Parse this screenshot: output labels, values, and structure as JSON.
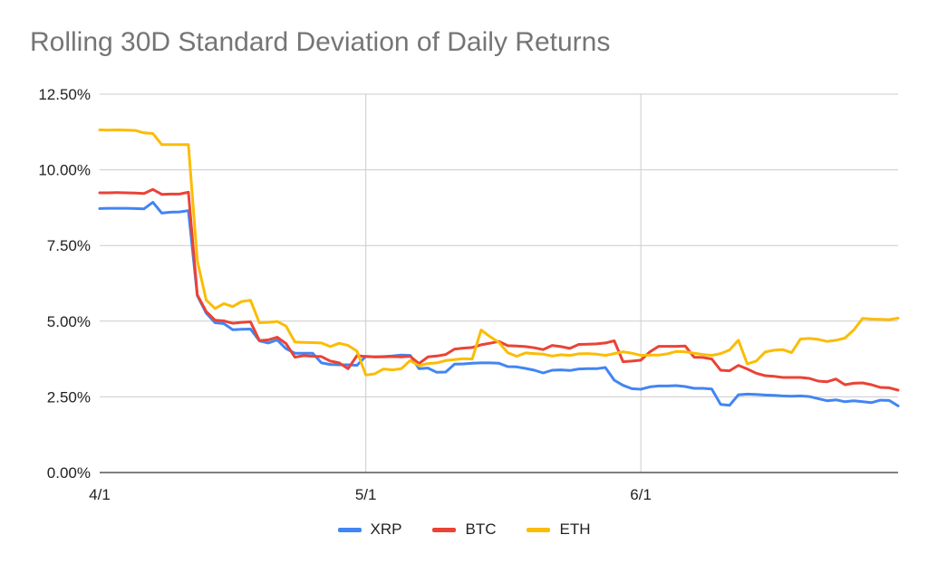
{
  "chart_data": {
    "type": "line",
    "title": "Rolling 30D Standard Deviation of Daily Returns",
    "xlabel": "",
    "ylabel": "",
    "x_ticks": [
      "4/1",
      "5/1",
      "6/1"
    ],
    "y_ticks": [
      "0.00%",
      "2.50%",
      "5.00%",
      "7.50%",
      "10.00%",
      "12.50%"
    ],
    "ylim": [
      0,
      12.5
    ],
    "grid": true,
    "legend_position": "bottom",
    "x": [
      "4/1",
      "4/2",
      "4/3",
      "4/4",
      "4/5",
      "4/6",
      "4/7",
      "4/8",
      "4/9",
      "4/10",
      "4/11",
      "4/12",
      "4/13",
      "4/14",
      "4/15",
      "4/16",
      "4/17",
      "4/18",
      "4/19",
      "4/20",
      "4/21",
      "4/22",
      "4/23",
      "4/24",
      "4/25",
      "4/26",
      "4/27",
      "4/28",
      "4/29",
      "4/30",
      "5/1",
      "5/2",
      "5/3",
      "5/4",
      "5/5",
      "5/6",
      "5/7",
      "5/8",
      "5/9",
      "5/10",
      "5/11",
      "5/12",
      "5/13",
      "5/14",
      "5/15",
      "5/16",
      "5/17",
      "5/18",
      "5/19",
      "5/20",
      "5/21",
      "5/22",
      "5/23",
      "5/24",
      "5/25",
      "5/26",
      "5/27",
      "5/28",
      "5/29",
      "5/30",
      "5/31",
      "6/1",
      "6/2",
      "6/3",
      "6/4",
      "6/5",
      "6/6",
      "6/7",
      "6/8",
      "6/9",
      "6/10",
      "6/11",
      "6/12",
      "6/13",
      "6/14",
      "6/15",
      "6/16",
      "6/17",
      "6/18",
      "6/19",
      "6/20",
      "6/21",
      "6/22",
      "6/23",
      "6/24",
      "6/25",
      "6/26",
      "6/27",
      "6/28",
      "6/29",
      "6/30"
    ],
    "series": [
      {
        "name": "XRP",
        "color": "#4285F4",
        "values": [
          8.72,
          8.73,
          8.73,
          8.73,
          8.72,
          8.71,
          8.93,
          8.57,
          8.6,
          8.61,
          8.65,
          5.85,
          5.27,
          4.95,
          4.92,
          4.72,
          4.73,
          4.74,
          4.35,
          4.28,
          4.38,
          4.09,
          3.94,
          3.94,
          3.94,
          3.62,
          3.57,
          3.56,
          3.56,
          3.54,
          3.84,
          3.82,
          3.83,
          3.85,
          3.88,
          3.87,
          3.43,
          3.45,
          3.31,
          3.32,
          3.58,
          3.59,
          3.61,
          3.62,
          3.62,
          3.61,
          3.5,
          3.49,
          3.44,
          3.38,
          3.29,
          3.38,
          3.39,
          3.37,
          3.42,
          3.43,
          3.43,
          3.47,
          3.05,
          2.88,
          2.77,
          2.75,
          2.83,
          2.86,
          2.86,
          2.87,
          2.84,
          2.78,
          2.78,
          2.76,
          2.25,
          2.22,
          2.57,
          2.59,
          2.58,
          2.56,
          2.55,
          2.53,
          2.52,
          2.53,
          2.51,
          2.44,
          2.37,
          2.4,
          2.34,
          2.37,
          2.34,
          2.31,
          2.39,
          2.38,
          2.2
        ]
      },
      {
        "name": "BTC",
        "color": "#EA4335",
        "values": [
          9.24,
          9.24,
          9.25,
          9.24,
          9.23,
          9.22,
          9.35,
          9.19,
          9.2,
          9.2,
          9.26,
          5.87,
          5.32,
          5.03,
          5.01,
          4.93,
          4.96,
          4.98,
          4.36,
          4.38,
          4.47,
          4.26,
          3.81,
          3.86,
          3.84,
          3.83,
          3.68,
          3.62,
          3.43,
          3.86,
          3.83,
          3.82,
          3.82,
          3.83,
          3.82,
          3.84,
          3.6,
          3.82,
          3.85,
          3.9,
          4.08,
          4.11,
          4.13,
          4.22,
          4.27,
          4.33,
          4.19,
          4.18,
          4.16,
          4.12,
          4.06,
          4.2,
          4.16,
          4.1,
          4.23,
          4.24,
          4.25,
          4.28,
          4.35,
          3.66,
          3.68,
          3.71,
          3.98,
          4.17,
          4.17,
          4.17,
          4.18,
          3.81,
          3.8,
          3.75,
          3.38,
          3.36,
          3.54,
          3.42,
          3.28,
          3.2,
          3.18,
          3.14,
          3.14,
          3.14,
          3.11,
          3.02,
          3.0,
          3.09,
          2.9,
          2.95,
          2.96,
          2.9,
          2.81,
          2.8,
          2.72
        ]
      },
      {
        "name": "ETH",
        "color": "#FBBC04",
        "values": [
          11.32,
          11.31,
          11.32,
          11.31,
          11.3,
          11.22,
          11.2,
          10.83,
          10.83,
          10.83,
          10.83,
          7.0,
          5.7,
          5.42,
          5.58,
          5.48,
          5.65,
          5.69,
          4.95,
          4.96,
          4.99,
          4.84,
          4.31,
          4.3,
          4.29,
          4.28,
          4.16,
          4.27,
          4.2,
          4.01,
          3.22,
          3.26,
          3.42,
          3.39,
          3.43,
          3.7,
          3.53,
          3.6,
          3.62,
          3.7,
          3.73,
          3.76,
          3.75,
          4.71,
          4.49,
          4.3,
          3.96,
          3.84,
          3.95,
          3.93,
          3.91,
          3.85,
          3.89,
          3.87,
          3.92,
          3.93,
          3.91,
          3.87,
          3.93,
          3.99,
          3.94,
          3.87,
          3.88,
          3.88,
          3.92,
          4.0,
          3.99,
          3.94,
          3.9,
          3.87,
          3.93,
          4.05,
          4.37,
          3.59,
          3.68,
          3.98,
          4.04,
          4.06,
          3.96,
          4.41,
          4.43,
          4.4,
          4.33,
          4.37,
          4.44,
          4.71,
          5.09,
          5.07,
          5.06,
          5.05,
          5.1
        ]
      }
    ]
  }
}
